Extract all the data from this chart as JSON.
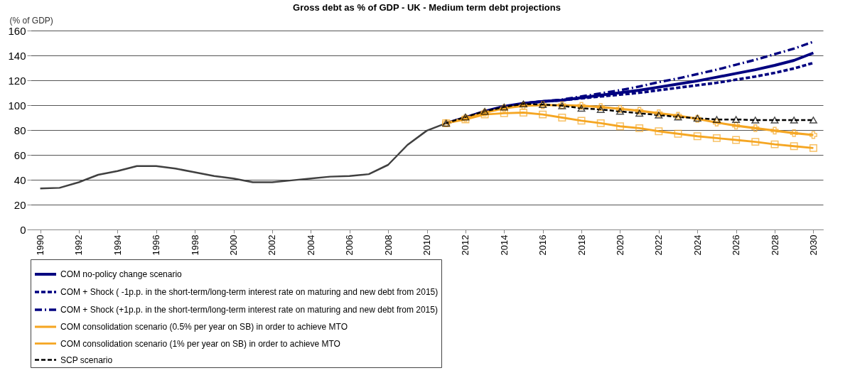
{
  "chart_data": {
    "type": "line",
    "title": "Gross debt as % of GDP - UK - Medium term debt projections",
    "ylabel": "(% of GDP)",
    "xlim": [
      1989.5,
      2030.5
    ],
    "xticks": [
      1990,
      1992,
      1994,
      1996,
      1998,
      2000,
      2002,
      2004,
      2006,
      2008,
      2010,
      2012,
      2014,
      2016,
      2018,
      2020,
      2022,
      2024,
      2026,
      2028,
      2030
    ],
    "ylim": [
      0,
      160
    ],
    "yticks": [
      0,
      20,
      40,
      60,
      80,
      100,
      120,
      140,
      160
    ],
    "grid": "y",
    "legend": "bottom",
    "series": [
      {
        "color": "#404040",
        "line_style": "solid",
        "marker": "none",
        "x": [
          1990,
          1991,
          1992,
          1993,
          1994,
          1995,
          1996,
          1997,
          1998,
          1999,
          2000,
          2001,
          2002,
          2003,
          2004,
          2005,
          2006,
          2007,
          2008,
          2009,
          2010,
          2011
        ],
        "values": [
          33,
          33.5,
          38,
          44,
          47,
          51,
          51,
          49,
          46,
          43,
          41,
          38,
          38,
          39.5,
          41,
          42.5,
          43,
          44.5,
          52,
          68,
          79.5,
          85.5
        ]
      },
      {
        "name": "COM no-policy change scenario",
        "color": "#000080",
        "line_style": "solid",
        "marker": "none",
        "x": [
          2011,
          2012,
          2013,
          2014,
          2015,
          2016,
          2017,
          2018,
          2019,
          2020,
          2021,
          2022,
          2023,
          2024,
          2025,
          2026,
          2027,
          2028,
          2029,
          2030
        ],
        "values": [
          85.5,
          90,
          95,
          99,
          101.5,
          103,
          104,
          106,
          108,
          110,
          112,
          114.5,
          117,
          119.5,
          122.5,
          125.5,
          128.5,
          132,
          136,
          142
        ]
      },
      {
        "name": "COM + Shock ( -1p.p. in the short-term/long-term interest rate on maturing and new debt from 2015)",
        "color": "#000080",
        "line_style": "dashed",
        "marker": "none",
        "x": [
          2015,
          2016,
          2017,
          2018,
          2019,
          2020,
          2021,
          2022,
          2023,
          2024,
          2025,
          2026,
          2027,
          2028,
          2029,
          2030
        ],
        "values": [
          101.5,
          103,
          104,
          105.5,
          107,
          108.5,
          110,
          112,
          114,
          116,
          118,
          120.5,
          123,
          126,
          129.5,
          134
        ]
      },
      {
        "name": "COM + Shock (+1p.p. in the short-term/long-term interest rate on maturing and new debt from 2015)",
        "color": "#000080",
        "line_style": "dashdot",
        "marker": "none",
        "x": [
          2015,
          2016,
          2017,
          2018,
          2019,
          2020,
          2021,
          2022,
          2023,
          2024,
          2025,
          2026,
          2027,
          2028,
          2029,
          2030
        ],
        "values": [
          101.5,
          103,
          104.5,
          107,
          109.5,
          112,
          115,
          118.5,
          121.5,
          125,
          128.5,
          132.5,
          136.5,
          141,
          145.5,
          151
        ]
      },
      {
        "name": "COM consolidation scenario (0.5% per year on SB) in order to achieve MTO",
        "color": "#f5a623",
        "line_style": "solid",
        "marker": "cross",
        "x": [
          2011,
          2012,
          2013,
          2014,
          2015,
          2016,
          2017,
          2018,
          2019,
          2020,
          2021,
          2022,
          2023,
          2024,
          2025,
          2026,
          2027,
          2028,
          2029,
          2030
        ],
        "values": [
          85.5,
          89.5,
          94,
          97.5,
          99.5,
          100,
          100,
          99.5,
          98.5,
          97,
          95.5,
          93.5,
          91.5,
          89,
          86,
          83.5,
          81.5,
          79.5,
          77.5,
          76
        ]
      },
      {
        "name": "COM consolidation scenario (1% per year on SB) in order to achieve MTO",
        "color": "#f5a623",
        "line_style": "solid",
        "marker": "square",
        "x": [
          2011,
          2012,
          2013,
          2014,
          2015,
          2016,
          2017,
          2018,
          2019,
          2020,
          2021,
          2022,
          2023,
          2024,
          2025,
          2026,
          2027,
          2028,
          2029,
          2030
        ],
        "values": [
          85.5,
          88.5,
          92.5,
          93.5,
          94,
          92.5,
          90,
          87.5,
          85.5,
          83,
          81.5,
          79,
          77,
          75,
          73.5,
          72,
          70.5,
          68.5,
          67,
          65.5
        ]
      },
      {
        "name": "SCP scenario",
        "color": "#000000",
        "line_style": "dashed",
        "marker": "triangle",
        "x": [
          2011,
          2012,
          2013,
          2014,
          2015,
          2016,
          2017,
          2018,
          2019,
          2020,
          2021,
          2022,
          2023,
          2024,
          2025,
          2026,
          2027,
          2028,
          2029,
          2030
        ],
        "values": [
          85.5,
          90.5,
          95,
          98.5,
          101,
          100.5,
          99.5,
          97.5,
          96.5,
          95,
          93.5,
          92,
          90.5,
          89.5,
          88.5,
          88.5,
          88,
          88,
          88,
          88
        ]
      }
    ]
  }
}
